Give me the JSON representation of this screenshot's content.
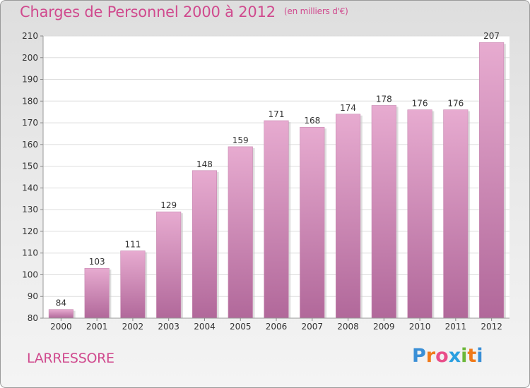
{
  "title": "Charges de Personnel 2000 à 2012",
  "title_unit": "(en milliers d'€)",
  "commune": "LARRESSORE",
  "logo": {
    "letters": [
      "P",
      "r",
      "o",
      "x",
      "i",
      "t",
      "i"
    ],
    "colors": [
      "#3a8fd6",
      "#f07a1a",
      "#e94e8a",
      "#2a9fe0",
      "#6cb83a",
      "#f07a1a",
      "#3a8fd6"
    ]
  },
  "colors": {
    "bar_top": "#e7abd0",
    "bar_bottom": "#b1689a",
    "text": "#d04a8e",
    "axis_text": "#333333"
  },
  "chart_data": {
    "type": "bar",
    "categories": [
      "2000",
      "2001",
      "2002",
      "2003",
      "2004",
      "2005",
      "2006",
      "2007",
      "2008",
      "2009",
      "2010",
      "2011",
      "2012"
    ],
    "values": [
      84,
      103,
      111,
      129,
      148,
      159,
      171,
      168,
      174,
      178,
      176,
      176,
      207
    ],
    "ylim": [
      80,
      210
    ],
    "yticks": [
      80,
      90,
      100,
      110,
      120,
      130,
      140,
      150,
      160,
      170,
      180,
      190,
      200,
      210
    ],
    "grid": true
  }
}
